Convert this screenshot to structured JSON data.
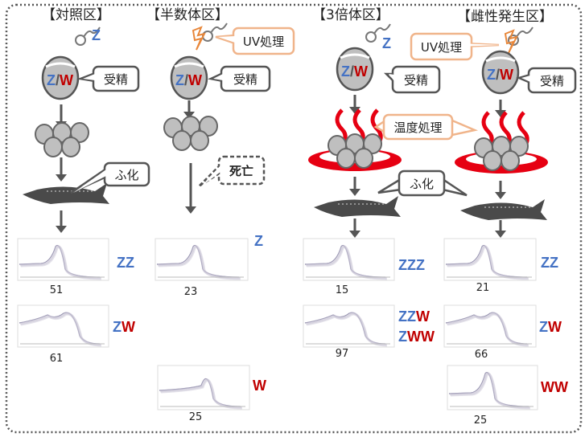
{
  "colors": {
    "z_blue": "#4472C4",
    "w_red": "#C00000",
    "uv_orange": "#E8873A",
    "heat_red": "#E60012",
    "bubble_orange": "#F0B48A",
    "arrow": "#555555"
  },
  "columns": [
    {
      "title": "【対照区】",
      "egg_chromosome": [
        "Z",
        "W"
      ],
      "sperm_chromosome": "Z",
      "fertilization": "受精",
      "hatching": "ふ化",
      "results": [
        {
          "count": "51",
          "genotype": "ZZ"
        },
        {
          "count": "61",
          "genotype": "ZW"
        }
      ]
    },
    {
      "title": "【半数体区】",
      "egg_chromosome": [
        "Z",
        "W"
      ],
      "uv": "UV処理",
      "fertilization": "受精",
      "death": "死亡",
      "results": [
        {
          "count": "23",
          "genotype": "Z"
        },
        {
          "count": "25",
          "genotype": "W"
        }
      ]
    },
    {
      "title": "【3倍体区】",
      "egg_chromosome": [
        "Z",
        "W"
      ],
      "sperm_chromosome": "Z",
      "fertilization": "受精",
      "temperature": "温度処理",
      "hatching": "ふ化",
      "results": [
        {
          "count": "15",
          "genotype": "ZZZ"
        },
        {
          "count": "97",
          "genotype": [
            "ZZW",
            "ZWW"
          ]
        }
      ]
    },
    {
      "title": "【雌性発生区】",
      "egg_chromosome": [
        "Z",
        "W"
      ],
      "uv": "UV処理",
      "fertilization": "受精",
      "results": [
        {
          "count": "21",
          "genotype": "ZZ"
        },
        {
          "count": "66",
          "genotype": "ZW"
        },
        {
          "count": "25",
          "genotype": "WW"
        }
      ]
    }
  ]
}
